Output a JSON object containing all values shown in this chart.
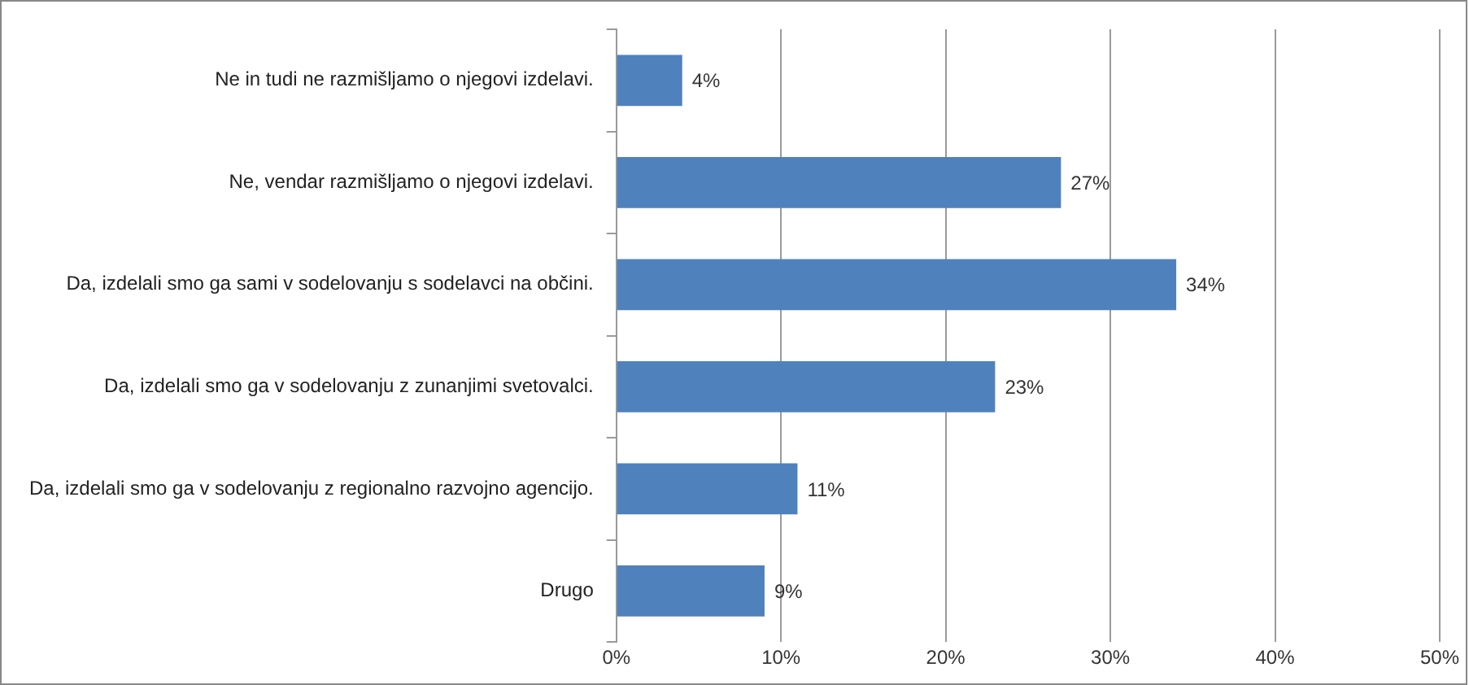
{
  "chart_data": {
    "type": "bar",
    "orientation": "horizontal",
    "categories": [
      "Ne in tudi ne razmišljamo o njegovi izdelavi.",
      "Ne, vendar razmišljamo o njegovi izdelavi.",
      "Da, izdelali smo ga sami v sodelovanju s sodelavci na občini.",
      "Da, izdelali smo ga v sodelovanju z zunanjimi svetovalci.",
      "Da, izdelali smo ga v sodelovanju z regionalno razvojno agencijo.",
      "Drugo"
    ],
    "values": [
      4,
      27,
      34,
      23,
      11,
      9
    ],
    "value_labels": [
      "4%",
      "27%",
      "34%",
      "23%",
      "11%",
      "9%"
    ],
    "color": "#4f81bd",
    "xlim": [
      0,
      50
    ],
    "xticks": [
      {
        "value": 0,
        "label": "0%"
      },
      {
        "value": 10,
        "label": "10%"
      },
      {
        "value": 20,
        "label": "20%"
      },
      {
        "value": 30,
        "label": "30%"
      },
      {
        "value": 40,
        "label": "40%"
      },
      {
        "value": 50,
        "label": "50%"
      }
    ],
    "grid": "x",
    "legend": false
  }
}
